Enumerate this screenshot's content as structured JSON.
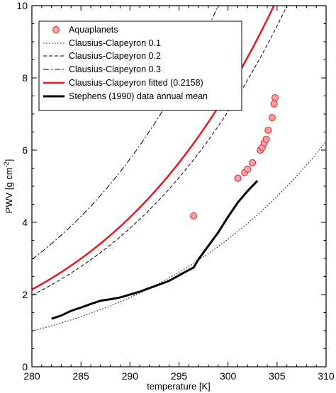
{
  "chart_data": {
    "type": "line",
    "title": "",
    "xlabel": "temperature [K]",
    "ylabel_main": "PWV [g cm",
    "ylabel_sup": "-2",
    "ylabel_tail": "]",
    "xlim": [
      280,
      310
    ],
    "ylim": [
      0,
      10
    ],
    "x_ticks": [
      280,
      285,
      290,
      295,
      300,
      305,
      310
    ],
    "y_ticks": [
      0,
      2,
      4,
      6,
      8,
      10
    ],
    "legend_position": "top-left",
    "grid": false,
    "series": [
      {
        "name": "Aquaplanets",
        "kind": "scatter",
        "color": "#e8383d",
        "points": [
          [
            296.5,
            4.18
          ],
          [
            301.0,
            5.22
          ],
          [
            301.7,
            5.38
          ],
          [
            302.0,
            5.47
          ],
          [
            302.5,
            5.65
          ],
          [
            303.3,
            6.0
          ],
          [
            303.5,
            6.08
          ],
          [
            303.7,
            6.2
          ],
          [
            303.9,
            6.3
          ],
          [
            304.1,
            6.55
          ],
          [
            304.5,
            6.9
          ],
          [
            304.7,
            7.28
          ],
          [
            304.8,
            7.45
          ]
        ]
      },
      {
        "name": "Clausius-Clapeyron 0.1",
        "kind": "curve",
        "coef": 0.1,
        "color": "#000000",
        "dash": "1.5,2.5",
        "width": 1
      },
      {
        "name": "Clausius-Clapeyron 0.2",
        "kind": "curve",
        "coef": 0.2,
        "color": "#000000",
        "dash": "5,3",
        "width": 1
      },
      {
        "name": "Clausius-Clapeyron 0.3",
        "kind": "curve",
        "coef": 0.3,
        "color": "#000000",
        "dash": "8,3,2,3",
        "width": 1
      },
      {
        "name": "Clausius-Clapeyron fitted (0.2158)",
        "kind": "curve",
        "coef": 0.2158,
        "color": "#e8181f",
        "dash": "",
        "width": 2.5
      },
      {
        "name": "Stephens (1990) data annual mean",
        "kind": "line",
        "color": "#000000",
        "width": 3,
        "points": [
          [
            282,
            1.33
          ],
          [
            283,
            1.42
          ],
          [
            284,
            1.55
          ],
          [
            285,
            1.64
          ],
          [
            286,
            1.74
          ],
          [
            287,
            1.83
          ],
          [
            288,
            1.87
          ],
          [
            289,
            1.92
          ],
          [
            290,
            2.0
          ],
          [
            291,
            2.08
          ],
          [
            292,
            2.18
          ],
          [
            293,
            2.28
          ],
          [
            294,
            2.38
          ],
          [
            295,
            2.53
          ],
          [
            296,
            2.68
          ],
          [
            296.5,
            2.75
          ],
          [
            297,
            2.98
          ],
          [
            298,
            3.35
          ],
          [
            299,
            3.72
          ],
          [
            300,
            4.15
          ],
          [
            301,
            4.55
          ],
          [
            302,
            4.87
          ],
          [
            303,
            5.15
          ]
        ]
      }
    ]
  }
}
